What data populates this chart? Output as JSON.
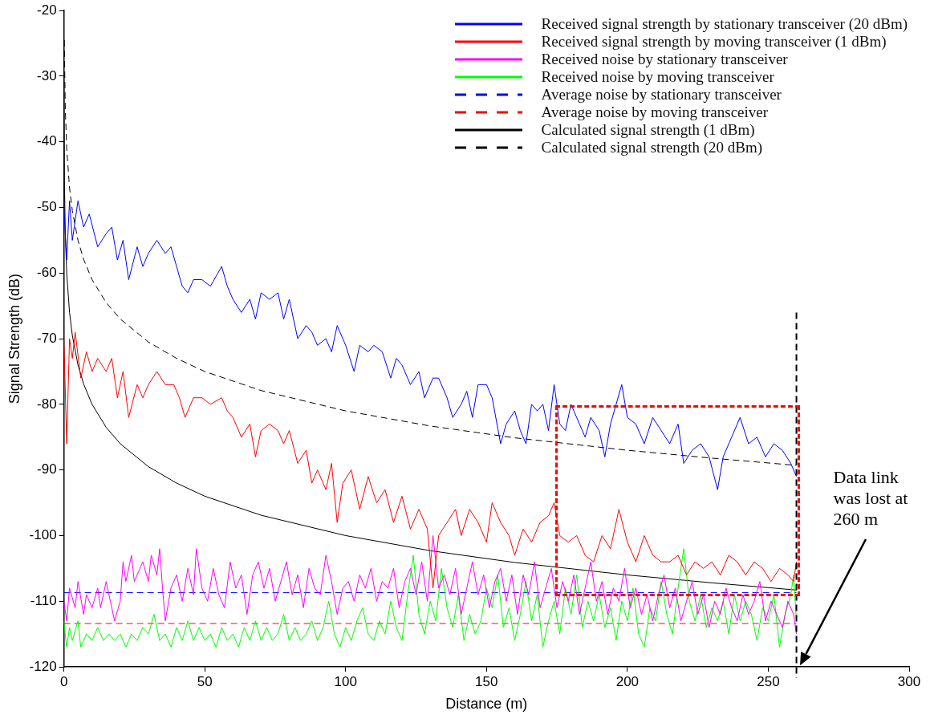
{
  "chart_data": {
    "type": "line",
    "xlabel": "Distance (m)",
    "ylabel": "Signal Strength (dB)",
    "xlim": [
      0,
      300
    ],
    "ylim": [
      -120,
      -20
    ],
    "xticks": [
      0,
      50,
      100,
      150,
      200,
      250,
      300
    ],
    "yticks": [
      -120,
      -110,
      -100,
      -90,
      -80,
      -70,
      -60,
      -50,
      -40,
      -30,
      -20
    ],
    "grid": false,
    "legend": "top right",
    "marker": "none",
    "ref_lines": [
      {
        "axis": "x",
        "value": 260,
        "color": "#000000",
        "line_style": "dashed"
      }
    ],
    "annotations": [
      "Data link was lost at 260 m"
    ],
    "series": [
      {
        "name": "Received signal strength by stationary transceiver (20 dBm)",
        "color": "#0000ff",
        "x": [
          0,
          1,
          2,
          3,
          5,
          7,
          9,
          12,
          15,
          17,
          19,
          21,
          23,
          26,
          28,
          30,
          33,
          36,
          38,
          40,
          42,
          44,
          46,
          49,
          52,
          56,
          58,
          60,
          63,
          66,
          68,
          70,
          73,
          76,
          78,
          80,
          83,
          86,
          88,
          90,
          93,
          95,
          97,
          100,
          103,
          105,
          108,
          110,
          113,
          116,
          118,
          120,
          123,
          126,
          128,
          131,
          133,
          136,
          138,
          141,
          143,
          145,
          147,
          150,
          152,
          155,
          157,
          160,
          162,
          164,
          166,
          168,
          170,
          172,
          174,
          176,
          178,
          180,
          182,
          185,
          187,
          190,
          192,
          194,
          196,
          198,
          200,
          203,
          206,
          209,
          212,
          215,
          218,
          220,
          223,
          226,
          229,
          232,
          234,
          237,
          240,
          243,
          246,
          249,
          252,
          255,
          258,
          260
        ],
        "values": [
          -50,
          -58,
          -49,
          -55,
          -49,
          -53,
          -51,
          -56,
          -54,
          -53,
          -58,
          -55,
          -61,
          -56,
          -59,
          -57,
          -55,
          -57,
          -56,
          -59,
          -62,
          -63,
          -61,
          -61,
          -62,
          -59,
          -62,
          -64,
          -66,
          -64,
          -67,
          -63,
          -64,
          -63,
          -67,
          -64,
          -70,
          -68,
          -69,
          -71,
          -70,
          -72,
          -68,
          -71,
          -75,
          -71,
          -72,
          -71,
          -72,
          -76,
          -73,
          -74,
          -77,
          -75,
          -79,
          -76,
          -76,
          -79,
          -82,
          -80,
          -78,
          -82,
          -77,
          -77,
          -79,
          -86,
          -83,
          -81,
          -84,
          -86,
          -80,
          -81,
          -80,
          -84,
          -77,
          -83,
          -84,
          -80,
          -82,
          -85,
          -82,
          -84,
          -88,
          -83,
          -80,
          -77,
          -82,
          -83,
          -86,
          -82,
          -84,
          -86,
          -83,
          -89,
          -87,
          -86,
          -88,
          -93,
          -88,
          -85,
          -82,
          -86,
          -85,
          -88,
          -86,
          -87,
          -89,
          -91
        ]
      },
      {
        "name": "Received signal strength by moving transceiver (1 dBm)",
        "color": "#ff0000",
        "x": [
          0,
          1,
          2,
          3,
          4,
          6,
          8,
          10,
          12,
          15,
          17,
          19,
          21,
          23,
          26,
          28,
          30,
          33,
          36,
          39,
          41,
          43,
          46,
          49,
          52,
          56,
          58,
          60,
          63,
          66,
          68,
          70,
          73,
          76,
          78,
          80,
          83,
          86,
          88,
          90,
          93,
          95,
          97,
          99,
          102,
          105,
          108,
          111,
          114,
          117,
          120,
          123,
          126,
          129,
          131,
          133,
          136,
          139,
          141,
          144,
          147,
          150,
          152,
          155,
          158,
          160,
          163,
          166,
          169,
          172,
          174,
          176,
          179,
          182,
          185,
          188,
          191,
          194,
          197,
          200,
          203,
          206,
          209,
          212,
          215,
          218,
          221,
          224,
          227,
          230,
          233,
          236,
          239,
          242,
          245,
          248,
          251,
          254,
          257,
          259,
          260
        ],
        "values": [
          -70,
          -86,
          -70,
          -73,
          -69,
          -76,
          -72,
          -75,
          -73,
          -75,
          -73,
          -79,
          -75,
          -82,
          -77,
          -79,
          -77,
          -75,
          -77,
          -77,
          -79,
          -82,
          -79,
          -79,
          -80,
          -79,
          -81,
          -82,
          -85,
          -83,
          -88,
          -84,
          -83,
          -84,
          -86,
          -84,
          -89,
          -87,
          -92,
          -90,
          -93,
          -89,
          -98,
          -92,
          -90,
          -96,
          -91,
          -95,
          -93,
          -98,
          -94,
          -99,
          -96,
          -99,
          -108,
          -100,
          -98,
          -96,
          -100,
          -96,
          -98,
          -101,
          -95,
          -98,
          -100,
          -103,
          -99,
          -101,
          -98,
          -97,
          -95,
          -100,
          -101,
          -100,
          -103,
          -104,
          -100,
          -102,
          -96,
          -101,
          -104,
          -100,
          -103,
          -104,
          -104,
          -103,
          -106,
          -104,
          -105,
          -104,
          -106,
          -103,
          -104,
          -106,
          -104,
          -105,
          -107,
          -105,
          -106,
          -107,
          -104
        ]
      },
      {
        "name": "Received noise by stationary transceiver",
        "color": "#ff00ff",
        "x": [
          0,
          1,
          2,
          4,
          5,
          7,
          8,
          10,
          12,
          13,
          15,
          17,
          18,
          20,
          21,
          22,
          24,
          25,
          27,
          28,
          30,
          31,
          33,
          34,
          35,
          36,
          38,
          40,
          42,
          44,
          46,
          47,
          49,
          51,
          53,
          55,
          57,
          59,
          61,
          63,
          65,
          67,
          69,
          71,
          73,
          75,
          77,
          79,
          81,
          83,
          85,
          87,
          89,
          91,
          93,
          95,
          97,
          99,
          101,
          103,
          105,
          107,
          109,
          111,
          113,
          115,
          117,
          119,
          121,
          123,
          125,
          127,
          129,
          131,
          133,
          135,
          137,
          139,
          141,
          143,
          145,
          147,
          149,
          151,
          153,
          155,
          157,
          159,
          161,
          163,
          165,
          167,
          169,
          171,
          173,
          175,
          177,
          179,
          181,
          183,
          185,
          187,
          189,
          191,
          193,
          195,
          197,
          199,
          201,
          203,
          205,
          207,
          209,
          211,
          213,
          215,
          217,
          219,
          221,
          223,
          225,
          227,
          229,
          231,
          233,
          235,
          237,
          239,
          241,
          243,
          245,
          247,
          249,
          251,
          253,
          255,
          257,
          259,
          260
        ],
        "values": [
          -110,
          -113,
          -108,
          -111,
          -107,
          -112,
          -109,
          -111,
          -108,
          -111,
          -107,
          -111,
          -113,
          -110,
          -104,
          -107,
          -103,
          -107,
          -105,
          -104,
          -107,
          -103,
          -106,
          -102,
          -108,
          -113,
          -108,
          -106,
          -110,
          -105,
          -109,
          -102,
          -108,
          -110,
          -105,
          -109,
          -111,
          -104,
          -108,
          -106,
          -112,
          -106,
          -104,
          -108,
          -105,
          -110,
          -107,
          -104,
          -109,
          -106,
          -111,
          -105,
          -108,
          -109,
          -103,
          -107,
          -112,
          -108,
          -107,
          -110,
          -106,
          -108,
          -105,
          -110,
          -107,
          -108,
          -105,
          -111,
          -107,
          -105,
          -109,
          -104,
          -110,
          -100,
          -108,
          -106,
          -109,
          -105,
          -112,
          -108,
          -104,
          -109,
          -106,
          -111,
          -107,
          -105,
          -110,
          -106,
          -112,
          -106,
          -109,
          -104,
          -111,
          -108,
          -105,
          -111,
          -107,
          -110,
          -106,
          -112,
          -108,
          -104,
          -110,
          -107,
          -112,
          -108,
          -110,
          -105,
          -111,
          -108,
          -112,
          -109,
          -113,
          -109,
          -106,
          -111,
          -108,
          -113,
          -110,
          -107,
          -112,
          -109,
          -114,
          -110,
          -112,
          -108,
          -111,
          -113,
          -109,
          -112,
          -110,
          -107,
          -113,
          -110,
          -112,
          -114,
          -110,
          -112,
          -115
        ]
      },
      {
        "name": "Received noise by moving transceiver",
        "color": "#00ff00",
        "x": [
          0,
          1,
          2,
          3,
          5,
          6,
          8,
          10,
          12,
          14,
          16,
          18,
          20,
          22,
          24,
          26,
          28,
          30,
          32,
          34,
          36,
          38,
          40,
          42,
          44,
          46,
          48,
          50,
          52,
          54,
          56,
          58,
          60,
          62,
          64,
          66,
          68,
          70,
          72,
          74,
          76,
          78,
          80,
          82,
          84,
          86,
          88,
          90,
          92,
          94,
          96,
          98,
          100,
          102,
          104,
          106,
          108,
          110,
          112,
          114,
          116,
          118,
          120,
          122,
          124,
          126,
          128,
          130,
          132,
          134,
          136,
          138,
          140,
          142,
          144,
          146,
          148,
          150,
          152,
          154,
          156,
          158,
          160,
          162,
          164,
          166,
          168,
          170,
          172,
          174,
          176,
          178,
          180,
          182,
          184,
          186,
          188,
          190,
          192,
          194,
          196,
          198,
          200,
          202,
          204,
          206,
          208,
          210,
          212,
          214,
          216,
          218,
          220,
          222,
          224,
          226,
          228,
          230,
          232,
          234,
          236,
          238,
          240,
          242,
          244,
          246,
          248,
          250,
          252,
          254,
          256,
          258,
          259,
          260
        ],
        "values": [
          -113,
          -117,
          -114,
          -116,
          -113,
          -117,
          -115,
          -116,
          -114,
          -116,
          -115,
          -116,
          -115,
          -117,
          -115,
          -116,
          -114,
          -115,
          -112,
          -116,
          -115,
          -117,
          -114,
          -116,
          -113,
          -116,
          -114,
          -116,
          -115,
          -117,
          -114,
          -116,
          -115,
          -117,
          -114,
          -116,
          -113,
          -116,
          -114,
          -116,
          -115,
          -112,
          -116,
          -114,
          -116,
          -115,
          -113,
          -116,
          -114,
          -110,
          -115,
          -117,
          -114,
          -116,
          -113,
          -111,
          -115,
          -116,
          -113,
          -115,
          -110,
          -114,
          -116,
          -109,
          -103,
          -112,
          -115,
          -110,
          -113,
          -105,
          -111,
          -114,
          -109,
          -116,
          -112,
          -115,
          -113,
          -108,
          -111,
          -106,
          -114,
          -111,
          -116,
          -112,
          -107,
          -113,
          -109,
          -117,
          -113,
          -110,
          -115,
          -108,
          -112,
          -106,
          -114,
          -110,
          -113,
          -109,
          -114,
          -111,
          -116,
          -110,
          -113,
          -108,
          -115,
          -117,
          -111,
          -113,
          -107,
          -112,
          -115,
          -108,
          -102,
          -110,
          -113,
          -109,
          -114,
          -111,
          -113,
          -110,
          -115,
          -109,
          -113,
          -110,
          -112,
          -116,
          -111,
          -113,
          -109,
          -117,
          -112,
          -109,
          -106,
          -113
        ]
      },
      {
        "name": "Average noise by stationary transceiver",
        "color": "#0000ff",
        "line_style": "dashed",
        "x": [
          0,
          260
        ],
        "values": [
          -108.7,
          -108.7
        ]
      },
      {
        "name": "Average noise by moving transceiver",
        "color": "#ff0000",
        "line_style": "dashed",
        "x": [
          0,
          260
        ],
        "values": [
          -113.4,
          -113.4
        ]
      },
      {
        "name": "Calculated signal strength (1 dBm)",
        "color": "#000000",
        "x": [
          0.03,
          0.2,
          0.5,
          1,
          2,
          3,
          5,
          7,
          10,
          15,
          20,
          30,
          40,
          50,
          70,
          100,
          130,
          160,
          200,
          230,
          260
        ],
        "values": [
          -29.5,
          -46,
          -54,
          -60,
          -66,
          -69.5,
          -74,
          -76.9,
          -80,
          -83.5,
          -86,
          -89.5,
          -92,
          -94,
          -96.9,
          -100,
          -102.3,
          -104.1,
          -106,
          -107.2,
          -108.3
        ]
      },
      {
        "name": "Calculated signal strength (20 dBm)",
        "color": "#000000",
        "line_style": "dashed",
        "x": [
          0.15,
          0.5,
          1,
          2,
          3,
          5,
          7,
          10,
          15,
          20,
          30,
          40,
          50,
          70,
          100,
          130,
          160,
          200,
          230,
          260
        ],
        "values": [
          -24.5,
          -35,
          -41,
          -47,
          -50.5,
          -55,
          -57.9,
          -61,
          -64.5,
          -67,
          -70.5,
          -73,
          -75,
          -77.9,
          -81,
          -83.3,
          -85.1,
          -87,
          -88.2,
          -89.3
        ]
      }
    ]
  }
}
